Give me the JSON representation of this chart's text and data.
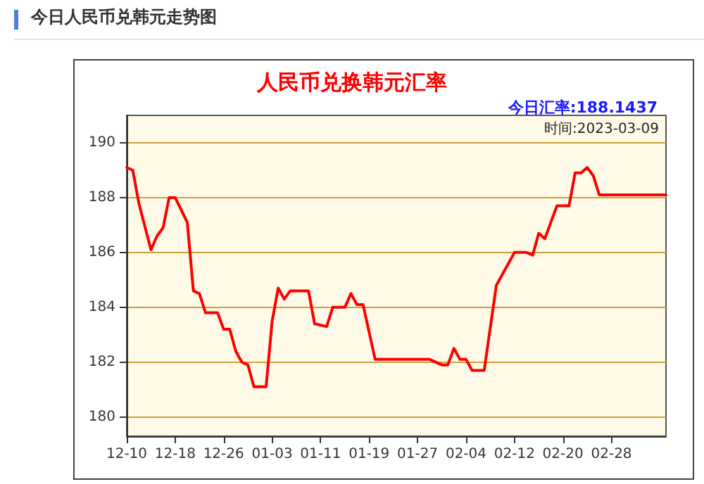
{
  "chart_data": {
    "type": "line",
    "title": "人民币兑换韩元汇率",
    "subtitle": "今日汇率:188.1437",
    "annotations": [
      "今日人民币兑韩元走势图",
      "时间:2023-03-09"
    ],
    "x": [
      "2022-12-10",
      "2022-12-11",
      "2022-12-12",
      "2022-12-14",
      "2022-12-15",
      "2022-12-16",
      "2022-12-17",
      "2022-12-18",
      "2022-12-20",
      "2022-12-21",
      "2022-12-22",
      "2022-12-23",
      "2022-12-25",
      "2022-12-26",
      "2022-12-27",
      "2022-12-28",
      "2022-12-29",
      "2022-12-30",
      "2022-12-31",
      "2023-01-02",
      "2023-01-03",
      "2023-01-04",
      "2023-01-05",
      "2023-01-06",
      "2023-01-09",
      "2023-01-10",
      "2023-01-12",
      "2023-01-13",
      "2023-01-15",
      "2023-01-16",
      "2023-01-17",
      "2023-01-18",
      "2023-01-20",
      "2023-01-29",
      "2023-01-31",
      "2023-02-01",
      "2023-02-02",
      "2023-02-03",
      "2023-02-04",
      "2023-02-05",
      "2023-02-07",
      "2023-02-09",
      "2023-02-10",
      "2023-02-12",
      "2023-02-14",
      "2023-02-15",
      "2023-02-16",
      "2023-02-17",
      "2023-02-19",
      "2023-02-21",
      "2023-02-22",
      "2023-02-23",
      "2023-02-24",
      "2023-02-25",
      "2023-02-26",
      "2023-03-09"
    ],
    "series": [
      {
        "color": "#ff0000",
        "values": [
          189.1,
          189.0,
          187.8,
          186.1,
          186.6,
          186.9,
          188.0,
          188.0,
          187.1,
          184.6,
          184.5,
          183.8,
          183.8,
          183.2,
          183.2,
          182.4,
          182.0,
          181.9,
          181.1,
          181.1,
          183.5,
          184.7,
          184.3,
          184.6,
          184.6,
          183.4,
          183.3,
          184.0,
          184.0,
          184.5,
          184.1,
          184.1,
          182.1,
          182.1,
          181.9,
          181.9,
          182.5,
          182.1,
          182.1,
          181.7,
          181.7,
          184.8,
          185.2,
          186.0,
          186.0,
          185.9,
          186.7,
          186.5,
          187.7,
          187.7,
          188.9,
          188.9,
          189.1,
          188.8,
          188.1,
          188.1
        ]
      }
    ],
    "xlim": [
      "2022-12-10",
      "2023-03-09"
    ],
    "xticks": [
      {
        "value": "2022-12-10",
        "label": "12-10"
      },
      {
        "value": "2022-12-18",
        "label": "12-18"
      },
      {
        "value": "2022-12-26",
        "label": "12-26"
      },
      {
        "value": "2023-01-03",
        "label": "01-03"
      },
      {
        "value": "2023-01-11",
        "label": "01-11"
      },
      {
        "value": "2023-01-19",
        "label": "01-19"
      },
      {
        "value": "2023-01-27",
        "label": "01-27"
      },
      {
        "value": "2023-02-04",
        "label": "02-04"
      },
      {
        "value": "2023-02-12",
        "label": "02-12"
      },
      {
        "value": "2023-02-20",
        "label": "02-20"
      },
      {
        "value": "2023-02-28",
        "label": "02-28"
      }
    ],
    "ylim": [
      179.3,
      191
    ],
    "yticks": [
      180,
      182,
      184,
      186,
      188,
      190
    ],
    "grid": "y",
    "marker": "none",
    "line_style": "solid"
  }
}
